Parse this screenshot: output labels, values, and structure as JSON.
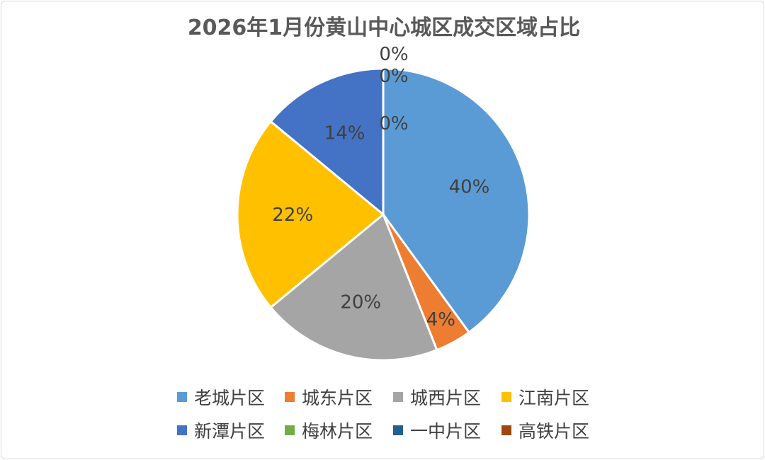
{
  "chart_data": {
    "type": "pie",
    "title": "2026年1月份黄山中心城区成交区域占比",
    "categories": [
      "老城片区",
      "城东片区",
      "城西片区",
      "江南片区",
      "新潭片区",
      "梅林片区",
      "一中片区",
      "高铁片区"
    ],
    "values": [
      40,
      4,
      20,
      22,
      14,
      0,
      0,
      0
    ],
    "labels": [
      "40%",
      "4%",
      "20%",
      "22%",
      "14%",
      "0%",
      "0%",
      "0%"
    ],
    "colors": [
      "#5b9bd5",
      "#ed7d31",
      "#a5a5a5",
      "#ffc000",
      "#4472c4",
      "#70ad47",
      "#255e91",
      "#9e480e"
    ],
    "legend_position": "bottom"
  }
}
